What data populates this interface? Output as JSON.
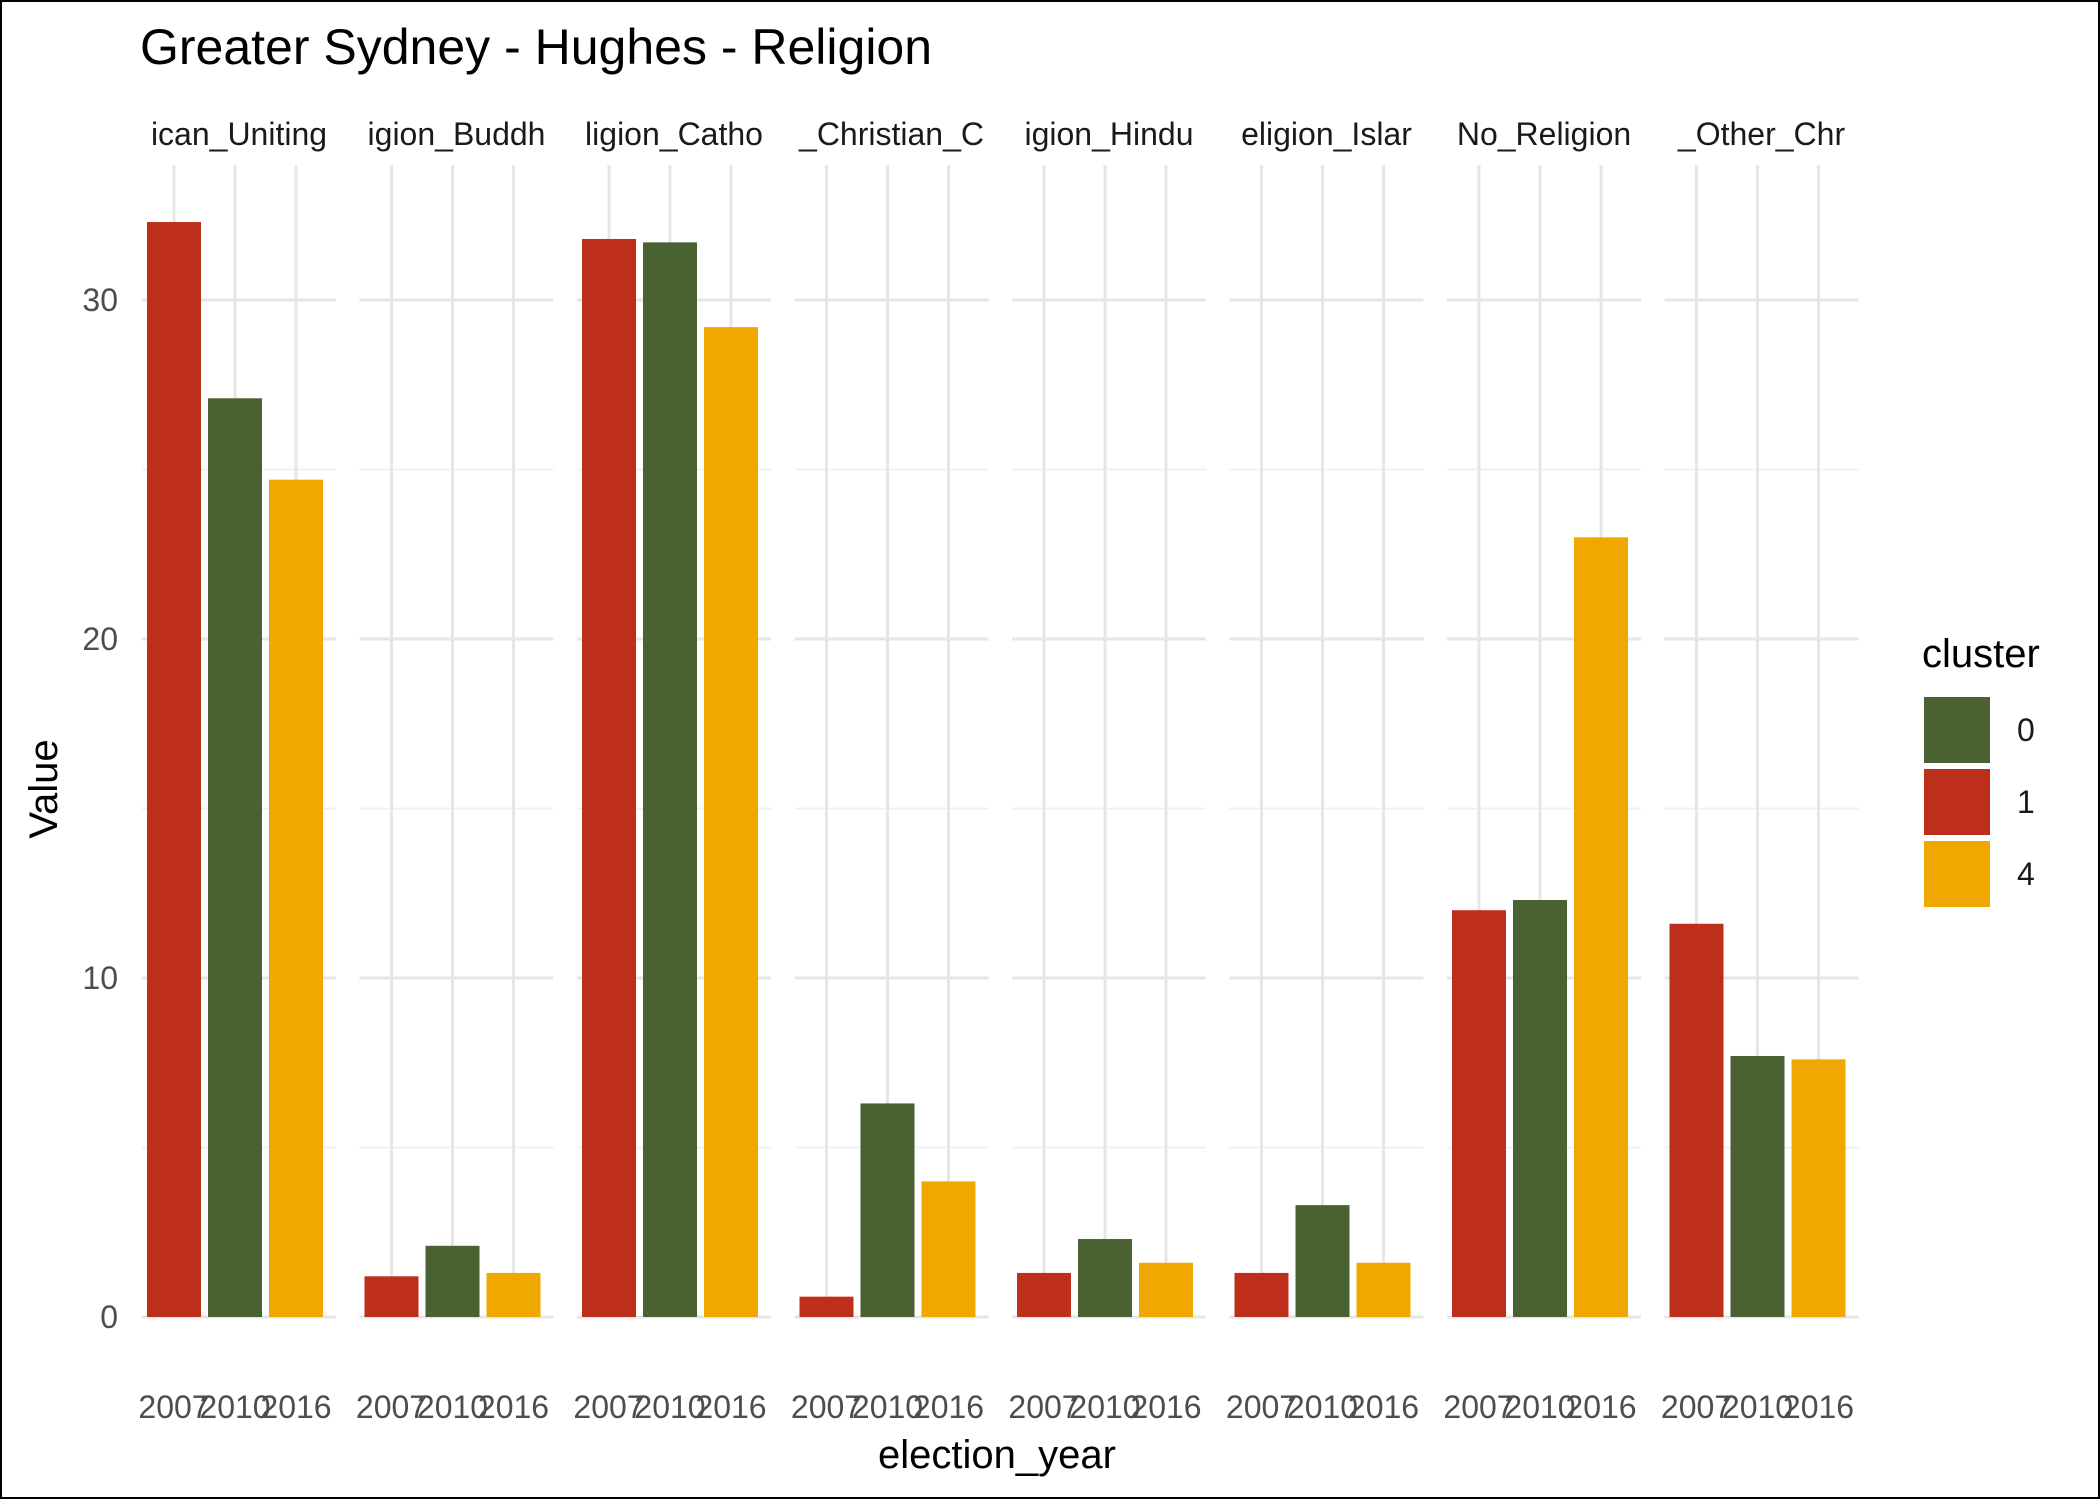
{
  "chart_data": {
    "type": "bar",
    "title": "Greater Sydney - Hughes - Religion",
    "xlabel": "election_year",
    "ylabel": "Value",
    "ylim": [
      0,
      34
    ],
    "y_ticks": [
      0,
      10,
      20,
      30
    ],
    "grid": true,
    "legend": {
      "title": "cluster",
      "placement": "right",
      "entries": [
        {
          "label": "0",
          "color": "#4A6132"
        },
        {
          "label": "1",
          "color": "#BE2F1B"
        },
        {
          "label": "4",
          "color": "#F0A800"
        }
      ]
    },
    "x_categories": [
      "2007",
      "2010",
      "2016"
    ],
    "bar_clusters": [
      "1",
      "0",
      "4"
    ],
    "facets": [
      {
        "label": "ican_Uniting",
        "values": [
          32.3,
          27.1,
          24.7
        ]
      },
      {
        "label": "igion_Buddh",
        "values": [
          1.2,
          2.1,
          1.3
        ]
      },
      {
        "label": "ligion_Catho",
        "values": [
          31.8,
          31.7,
          29.2
        ]
      },
      {
        "label": "_Christian_C",
        "values": [
          0.6,
          6.3,
          4.0
        ]
      },
      {
        "label": "igion_Hindu",
        "values": [
          1.3,
          2.3,
          1.6
        ]
      },
      {
        "label": "eligion_Islar",
        "values": [
          1.3,
          3.3,
          1.6
        ]
      },
      {
        "label": "No_Religion",
        "values": [
          12.0,
          12.3,
          23.0
        ]
      },
      {
        "label": "_Other_Chr",
        "values": [
          11.6,
          7.7,
          7.6
        ]
      }
    ]
  }
}
